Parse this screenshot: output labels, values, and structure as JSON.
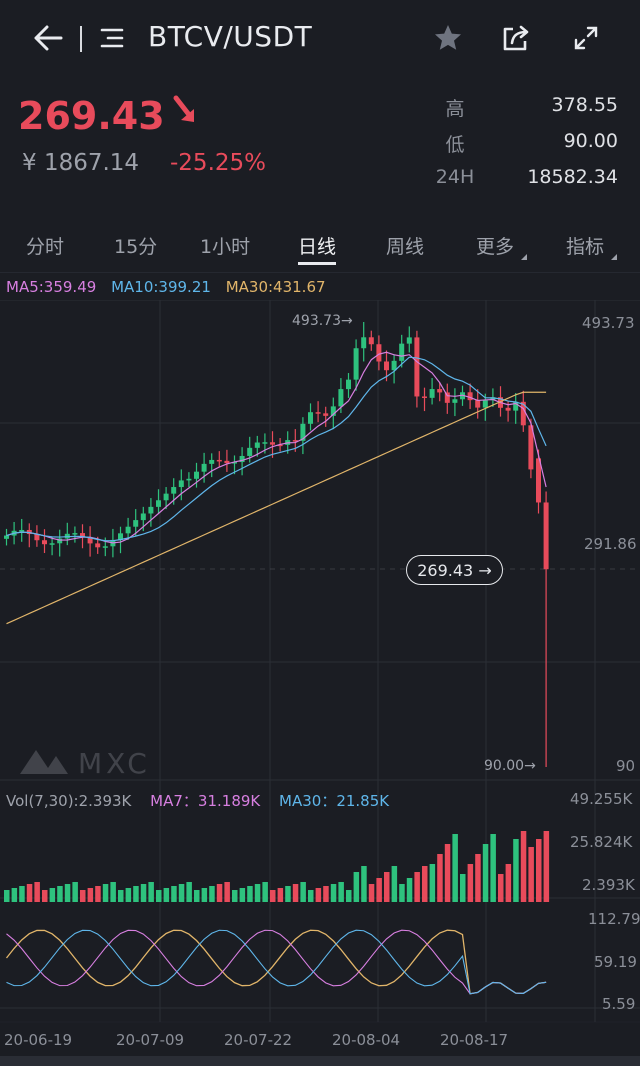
{
  "header": {
    "back_icon": "arrow-left-icon",
    "menu_icon": "menu-icon",
    "pair": "BTCV/USDT",
    "star_icon": "star-icon",
    "share_icon": "share-icon",
    "fullscreen_icon": "fullscreen-icon"
  },
  "ticker": {
    "price": "269.43",
    "arrow": "➘",
    "cny": "¥ 1867.14",
    "change": "-25.25%",
    "high_label": "高",
    "high": "378.55",
    "low_label": "低",
    "low": "90.00",
    "vol_label": "24H",
    "vol": "18582.34"
  },
  "tabs": [
    "分时",
    "15分",
    "1小时",
    "日线",
    "周线",
    "更多",
    "指标"
  ],
  "active_tab": "日线",
  "ma": {
    "ma5": "MA5:359.49",
    "ma10": "MA10:399.21",
    "ma30": "MA30:431.67"
  },
  "price_axis": {
    "top": "493.73",
    "mid": "291.86",
    "bottom": "90"
  },
  "chart_marks": {
    "high_mark": "493.73→",
    "low_mark": "90.00→",
    "current": "269.43 →",
    "watermark": "MXC"
  },
  "volume": {
    "vol": "Vol(7,30):2.393K",
    "ma7": "MA7：31.189K",
    "ma30": "MA30：21.85K",
    "axis_top": "49.255K",
    "axis_mid": "25.824K",
    "axis_bottom": "2.393K"
  },
  "indicator_axis": {
    "top": "112.79",
    "mid": "59.19",
    "bottom": "5.59"
  },
  "dates": [
    "20-06-19",
    "20-07-09",
    "20-07-22",
    "20-08-04",
    "20-08-17"
  ],
  "colors": {
    "up": "#2ec27e",
    "down": "#e84b5b",
    "ma5": "#d77fe0",
    "ma10": "#5fb6ea",
    "ma30": "#e1b56a"
  }
}
